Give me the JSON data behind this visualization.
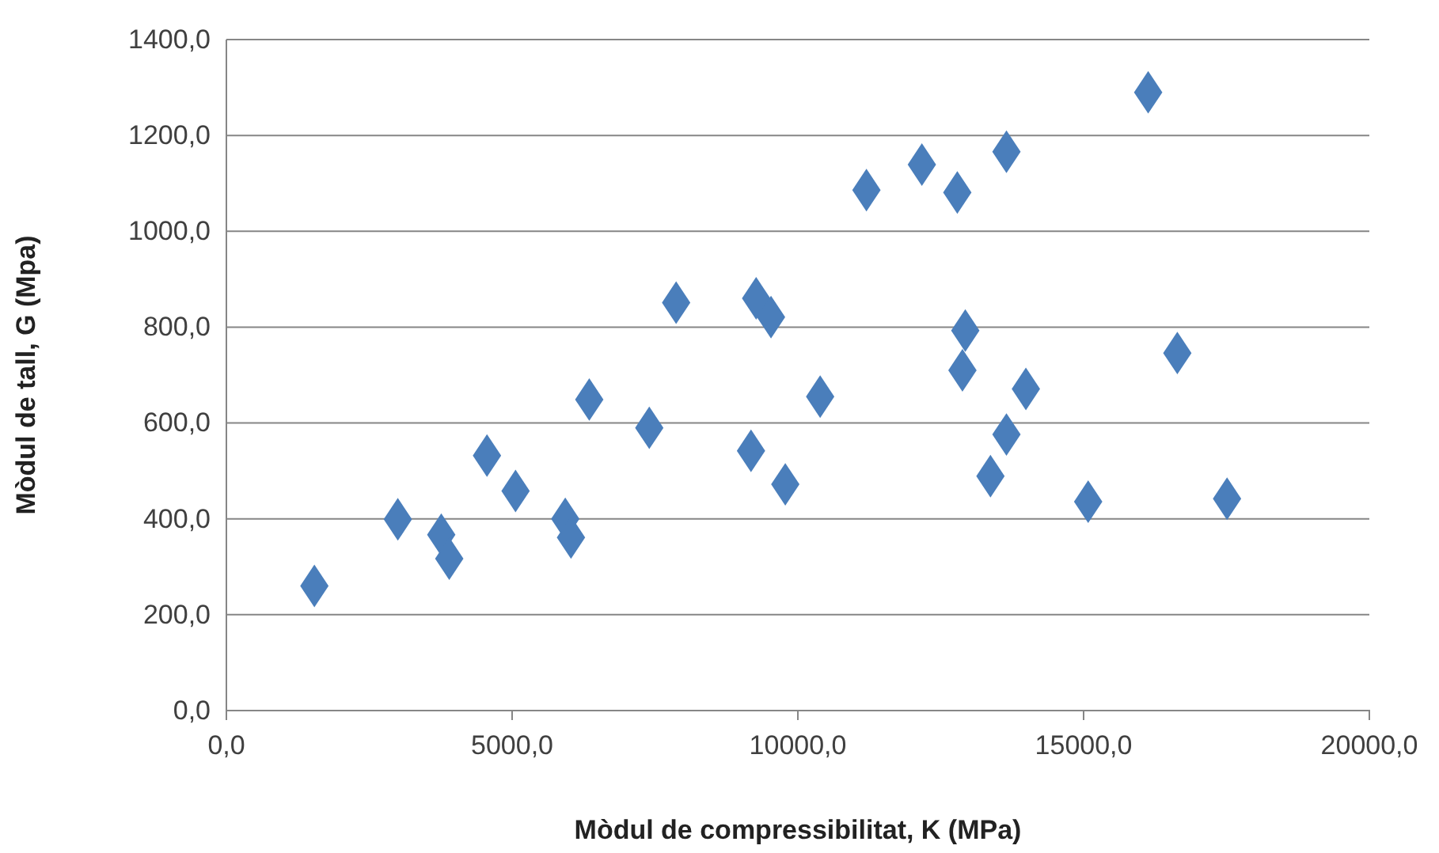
{
  "chart_data": {
    "type": "scatter",
    "xlabel": "Mòdul de compressibilitat, K (MPa)",
    "ylabel": "Mòdul de tall,  G (Mpa)",
    "xlim": [
      0,
      20000
    ],
    "ylim": [
      0,
      1400
    ],
    "xticks": [
      {
        "value": 0,
        "label": "0,0"
      },
      {
        "value": 5000,
        "label": "5000,0"
      },
      {
        "value": 10000,
        "label": "10000,0"
      },
      {
        "value": 15000,
        "label": "15000,0"
      },
      {
        "value": 20000,
        "label": "20000,0"
      }
    ],
    "yticks": [
      {
        "value": 0,
        "label": "0,0"
      },
      {
        "value": 200,
        "label": "200,0"
      },
      {
        "value": 400,
        "label": "400,0"
      },
      {
        "value": 600,
        "label": "600,0"
      },
      {
        "value": 800,
        "label": "800,0"
      },
      {
        "value": 1000,
        "label": "1000,0"
      },
      {
        "value": 1200,
        "label": "1200,0"
      },
      {
        "value": 1400,
        "label": "1400,0"
      }
    ],
    "grid": "y",
    "marker": "diamond",
    "series": [
      {
        "color": "#4a7ebb",
        "x": [
          1540,
          3000,
          3760,
          3900,
          4560,
          5060,
          5930,
          6030,
          6350,
          7400,
          9180,
          9780,
          16130,
          11200,
          12170,
          12790,
          13650,
          7870,
          9270,
          9530,
          12930,
          12880,
          13990,
          16640,
          10390,
          13650,
          13370,
          15080,
          17510
        ],
        "values": [
          260,
          399,
          367,
          317,
          532,
          458,
          400,
          361,
          649,
          590,
          542,
          472,
          1290,
          1086,
          1139,
          1081,
          1166,
          851,
          860,
          821,
          793,
          710,
          671,
          746,
          655,
          576,
          489,
          436,
          442
        ]
      }
    ]
  }
}
